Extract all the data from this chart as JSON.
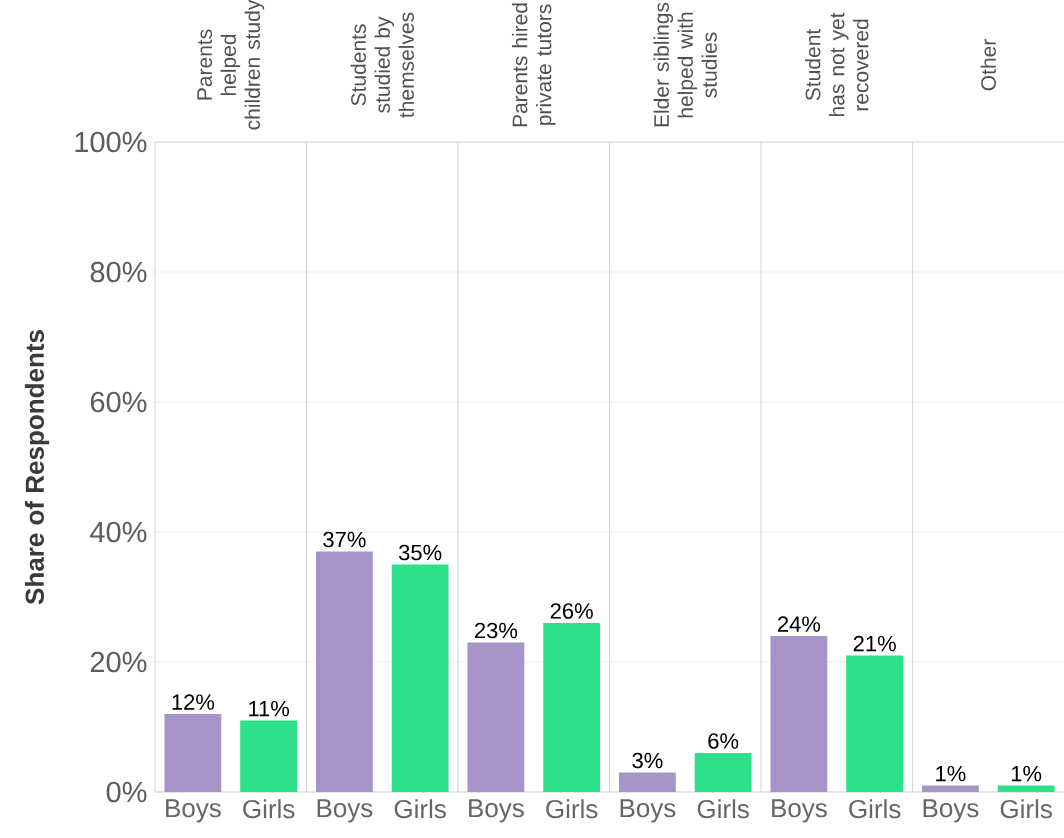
{
  "chart_data": [
    {
      "type": "bar",
      "title": "Parents helped children study",
      "ylabel": "Share of Respondents",
      "categories": [
        "Boys",
        "Girls"
      ],
      "values": [
        12,
        11
      ],
      "colors": [
        "#a693c8",
        "#2de08a"
      ],
      "value_labels": [
        "12%",
        "11%"
      ],
      "ylim": [
        0,
        100
      ],
      "yticks": [
        {
          "value": 0,
          "label": "0%"
        },
        {
          "value": 20,
          "label": "20%"
        },
        {
          "value": 40,
          "label": "40%"
        },
        {
          "value": 60,
          "label": "60%"
        },
        {
          "value": 80,
          "label": "80%"
        },
        {
          "value": 100,
          "label": "100%"
        }
      ],
      "grid": "y"
    },
    {
      "type": "bar",
      "title": "Students studied by themselves",
      "categories": [
        "Boys",
        "Girls"
      ],
      "values": [
        37,
        35
      ],
      "colors": [
        "#a693c8",
        "#2de08a"
      ],
      "value_labels": [
        "37%",
        "35%"
      ],
      "ylim": [
        0,
        100
      ],
      "yticks": [
        {
          "value": 0,
          "label": null
        },
        {
          "value": 20,
          "label": null
        },
        {
          "value": 40,
          "label": null
        },
        {
          "value": 60,
          "label": null
        },
        {
          "value": 80,
          "label": null
        },
        {
          "value": 100,
          "label": null
        }
      ],
      "grid": "y",
      "tick_labels": "x"
    },
    {
      "type": "bar",
      "title": "Parents hired private tutors",
      "categories": [
        "Boys",
        "Girls"
      ],
      "values": [
        23,
        26
      ],
      "colors": [
        "#a693c8",
        "#2de08a"
      ],
      "value_labels": [
        "23%",
        "26%"
      ],
      "ylim": [
        0,
        100
      ],
      "yticks": [
        {
          "value": 0,
          "label": null
        },
        {
          "value": 20,
          "label": null
        },
        {
          "value": 40,
          "label": null
        },
        {
          "value": 60,
          "label": null
        },
        {
          "value": 80,
          "label": null
        },
        {
          "value": 100,
          "label": null
        }
      ],
      "grid": "y",
      "tick_labels": "x"
    },
    {
      "type": "bar",
      "title": "Elder siblings helped with studies",
      "categories": [
        "Boys",
        "Girls"
      ],
      "values": [
        3,
        6
      ],
      "colors": [
        "#a693c8",
        "#2de08a"
      ],
      "value_labels": [
        "3%",
        "6%"
      ],
      "ylim": [
        0,
        100
      ],
      "yticks": [
        {
          "value": 0,
          "label": null
        },
        {
          "value": 20,
          "label": null
        },
        {
          "value": 40,
          "label": null
        },
        {
          "value": 60,
          "label": null
        },
        {
          "value": 80,
          "label": null
        },
        {
          "value": 100,
          "label": null
        }
      ],
      "grid": "y",
      "tick_labels": "x"
    },
    {
      "type": "bar",
      "title": "Student has not yet recovered",
      "categories": [
        "Boys",
        "Girls"
      ],
      "values": [
        24,
        21
      ],
      "colors": [
        "#a693c8",
        "#2de08a"
      ],
      "value_labels": [
        "24%",
        "21%"
      ],
      "ylim": [
        0,
        100
      ],
      "yticks": [
        {
          "value": 0,
          "label": null
        },
        {
          "value": 20,
          "label": null
        },
        {
          "value": 40,
          "label": null
        },
        {
          "value": 60,
          "label": null
        },
        {
          "value": 80,
          "label": null
        },
        {
          "value": 100,
          "label": null
        }
      ],
      "grid": "y",
      "tick_labels": "x"
    },
    {
      "type": "bar",
      "title": "Other",
      "categories": [
        "Boys",
        "Girls"
      ],
      "values": [
        1,
        1
      ],
      "colors": [
        "#a693c8",
        "#2de08a"
      ],
      "value_labels": [
        "1%",
        "1%"
      ],
      "ylim": [
        0,
        100
      ],
      "yticks": [
        {
          "value": 0,
          "label": null
        },
        {
          "value": 20,
          "label": null
        },
        {
          "value": 40,
          "label": null
        },
        {
          "value": 60,
          "label": null
        },
        {
          "value": 80,
          "label": null
        },
        {
          "value": 100,
          "label": null
        }
      ],
      "grid": "y",
      "tick_labels": "x"
    }
  ]
}
